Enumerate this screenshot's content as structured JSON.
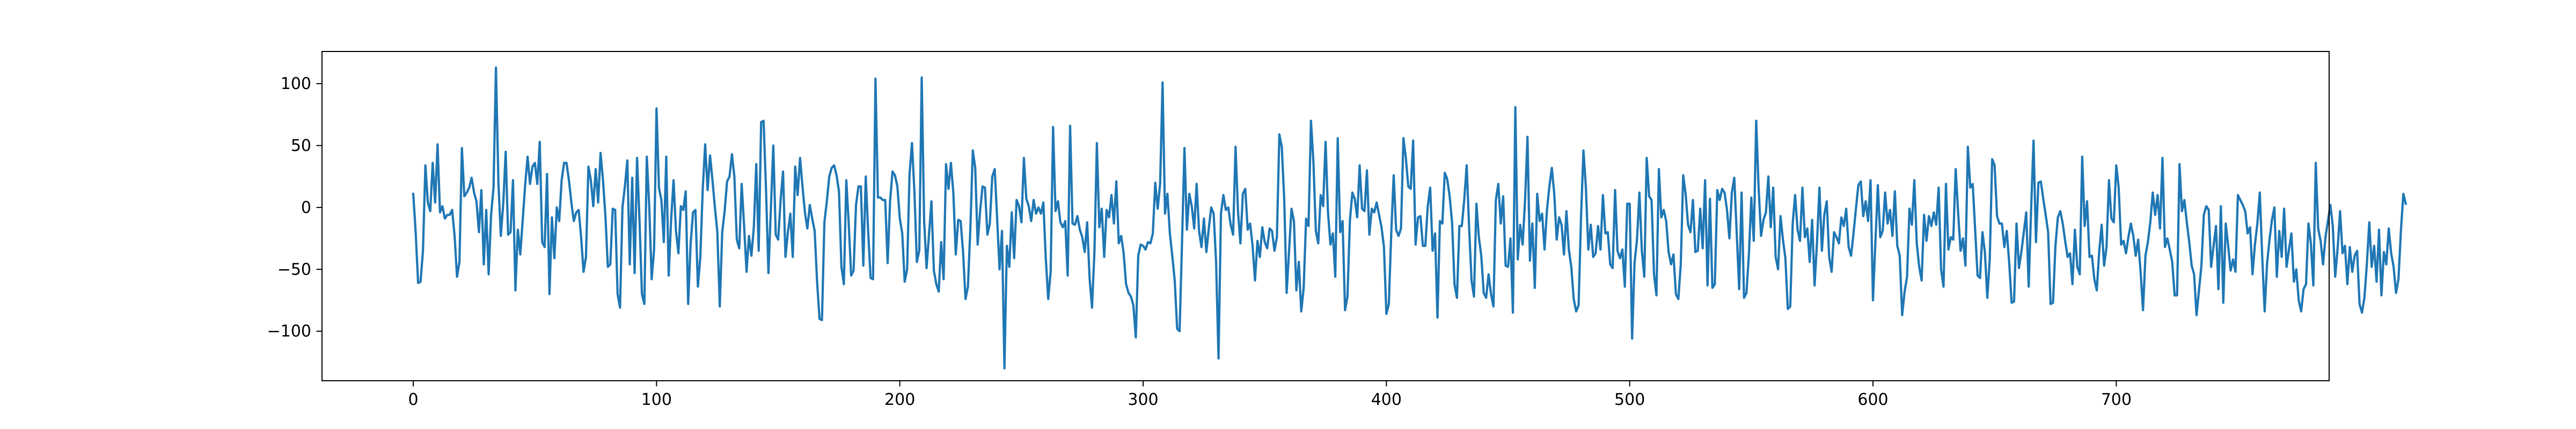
{
  "chart_data": {
    "type": "line",
    "title": "",
    "xlabel": "",
    "ylabel": "",
    "xlim": [
      -37.5,
      787.5
    ],
    "ylim": [
      -140,
      126
    ],
    "xticks": [
      0,
      100,
      200,
      300,
      400,
      500,
      600,
      700
    ],
    "yticks": [
      -100,
      -50,
      0,
      50,
      100
    ],
    "xtick_labels": [
      "0",
      "100",
      "200",
      "300",
      "400",
      "500",
      "600",
      "700"
    ],
    "ytick_labels": [
      "−100",
      "−50",
      "0",
      "50",
      "100"
    ],
    "grid": false,
    "legend": "none",
    "color": "#1f77b4",
    "series": [
      {
        "x_start": 0,
        "x_step": 1,
        "values": [
          11,
          -20,
          -61,
          -60,
          -35,
          34,
          4,
          -3,
          36,
          4,
          51,
          -4,
          1,
          -9,
          -6,
          -6,
          -2,
          -23,
          -56,
          -44,
          48,
          9,
          12,
          16,
          24,
          12,
          5,
          -20,
          14,
          -46,
          -2,
          -54,
          -6,
          16,
          113,
          21,
          -23,
          3,
          45,
          -22,
          -20,
          22,
          -67,
          -18,
          -38,
          -10,
          18,
          41,
          19,
          33,
          36,
          19,
          53,
          -28,
          -32,
          27,
          -70,
          -8,
          -41,
          0,
          -11,
          22,
          36,
          36,
          22,
          4,
          -11,
          -4,
          -2,
          -24,
          -52,
          -40,
          33,
          22,
          1,
          31,
          4,
          44,
          22,
          -7,
          -48,
          -46,
          -1,
          -2,
          -70,
          -81,
          0,
          17,
          38,
          -46,
          24,
          -53,
          40,
          -10,
          -70,
          -78,
          41,
          1,
          -58,
          -34,
          80,
          16,
          6,
          -28,
          41,
          -55,
          -10,
          22,
          -19,
          -37,
          1,
          -2,
          13,
          -78,
          -30,
          -4,
          -2,
          -64,
          -40,
          15,
          51,
          14,
          42,
          22,
          0,
          -20,
          -80,
          -20,
          -3,
          21,
          25,
          43,
          25,
          -26,
          -33,
          19,
          -15,
          -52,
          -23,
          -39,
          -16,
          35,
          -35,
          69,
          70,
          15,
          -53,
          -1,
          50,
          -22,
          -26,
          6,
          29,
          -40,
          -20,
          -5,
          -40,
          33,
          10,
          40,
          17,
          -4,
          -17,
          2,
          -9,
          -19,
          -60,
          -90,
          -91,
          -12,
          5,
          25,
          32,
          34,
          26,
          13,
          -48,
          -62,
          22,
          -13,
          -55,
          -51,
          2,
          17,
          17,
          -47,
          25,
          -20,
          -57,
          -58,
          104,
          8,
          8,
          6,
          6,
          -45,
          5,
          29,
          26,
          17,
          -9,
          -21,
          -60,
          -50,
          27,
          52,
          13,
          -44,
          -35,
          105,
          -11,
          -49,
          -22,
          5,
          -51,
          -62,
          -68,
          -28,
          -58,
          35,
          15,
          36,
          12,
          -38,
          -10,
          -11,
          -36,
          -74,
          -64,
          -17,
          46,
          32,
          -30,
          -3,
          17,
          16,
          -22,
          -13,
          25,
          31,
          -9,
          -50,
          -19,
          -130,
          -31,
          -48,
          -4,
          -41,
          6,
          1,
          -12,
          40,
          7,
          1,
          -11,
          6,
          -5,
          0,
          -5,
          4,
          -41,
          -74,
          -52,
          65,
          -3,
          5,
          -12,
          -16,
          -11,
          -55,
          66,
          -13,
          -14,
          -7,
          -18,
          -24,
          -36,
          -12,
          -57,
          -81,
          -36,
          52,
          -16,
          -1,
          -40,
          -2,
          -8,
          10,
          -13,
          21,
          -29,
          -23,
          -37,
          -62,
          -69,
          -72,
          -79,
          -105,
          -39,
          -30,
          -31,
          -34,
          -28,
          -29,
          -21,
          20,
          -1,
          19,
          101,
          -5,
          11,
          -21,
          -39,
          -59,
          -98,
          -100,
          -28,
          48,
          -18,
          11,
          1,
          -17,
          19,
          -19,
          -32,
          -9,
          -36,
          -17,
          0,
          -5,
          -44,
          -122,
          -5,
          10,
          -2,
          0,
          -14,
          -22,
          49,
          -3,
          -29,
          11,
          15,
          -18,
          -13,
          -31,
          -59,
          -27,
          -40,
          -16,
          -28,
          -33,
          -17,
          -19,
          -35,
          -24,
          59,
          49,
          7,
          -69,
          -35,
          -1,
          -11,
          -67,
          -44,
          -84,
          -65,
          -9,
          -15,
          70,
          37,
          -19,
          -29,
          10,
          1,
          53,
          -4,
          -30,
          -21,
          -56,
          56,
          -20,
          -11,
          -83,
          -72,
          -11,
          12,
          7,
          -8,
          34,
          -1,
          -3,
          30,
          -22,
          -1,
          -4,
          4,
          -6,
          -16,
          -32,
          -86,
          -78,
          -21,
          26,
          -18,
          -23,
          -17,
          56,
          40,
          17,
          15,
          54,
          -30,
          -8,
          -7,
          -31,
          -31,
          1,
          16,
          -35,
          -21,
          -89,
          -11,
          -13,
          28,
          23,
          9,
          -12,
          -62,
          -73,
          -15,
          -15,
          6,
          34,
          -16,
          -59,
          -72,
          3,
          -24,
          -39,
          -69,
          -73,
          -54,
          -70,
          -80,
          6,
          19,
          -13,
          9,
          -47,
          -48,
          -25,
          -85,
          81,
          -42,
          -14,
          -30,
          6,
          57,
          -43,
          -13,
          -65,
          11,
          -11,
          -5,
          -34,
          -2,
          17,
          32,
          11,
          -26,
          -8,
          -14,
          -38,
          -3,
          -34,
          -48,
          -74,
          -84,
          -79,
          -8,
          46,
          16,
          -34,
          -14,
          -40,
          -37,
          -15,
          -34,
          10,
          -21,
          -20,
          -46,
          -49,
          14,
          -35,
          -41,
          -34,
          -64,
          3,
          3,
          -106,
          -45,
          -26,
          12,
          -35,
          -56,
          40,
          9,
          6,
          -54,
          -71,
          31,
          -8,
          -2,
          -11,
          -36,
          -46,
          -38,
          -70,
          -74,
          -46,
          26,
          11,
          -14,
          -20,
          6,
          -36,
          -35,
          -1,
          -33,
          22,
          -63,
          7,
          -65,
          -62,
          14,
          6,
          15,
          12,
          -2,
          -25,
          12,
          24,
          -21,
          -66,
          12,
          -73,
          -69,
          -38,
          8,
          -27,
          70,
          16,
          -23,
          -10,
          -4,
          25,
          -16,
          16,
          -40,
          -50,
          -7,
          -26,
          -41,
          -82,
          -80,
          -13,
          10,
          -18,
          -27,
          16,
          -24,
          -17,
          -44,
          -10,
          -63,
          -28,
          16,
          -35,
          -6,
          5,
          -40,
          -52,
          -20,
          -24,
          -29,
          -8,
          -15,
          -1,
          -32,
          -39,
          -21,
          -1,
          18,
          21,
          -7,
          5,
          -11,
          22,
          -75,
          -28,
          18,
          -24,
          -19,
          12,
          -13,
          -2,
          -23,
          13,
          -31,
          -39,
          -87,
          -68,
          -56,
          -1,
          -14,
          22,
          -29,
          -48,
          -59,
          -6,
          -27,
          -7,
          -15,
          -4,
          -14,
          16,
          -50,
          -64,
          19,
          -34,
          -24,
          -26,
          31,
          -4,
          -35,
          -25,
          -47,
          49,
          16,
          19,
          -18,
          -55,
          -57,
          -20,
          -36,
          -73,
          -42,
          39,
          34,
          -7,
          -13,
          -13,
          -32,
          -19,
          -45,
          -77,
          -76,
          -13,
          -49,
          -36,
          -20,
          -4,
          -64,
          -2,
          54,
          -28,
          20,
          21,
          7,
          -6,
          -20,
          -78,
          -77,
          -31,
          -8,
          -3,
          -13,
          -27,
          -40,
          -37,
          -62,
          -18,
          -48,
          -54,
          41,
          -15,
          5,
          -40,
          -39,
          -58,
          -67,
          -35,
          -14,
          -47,
          -32,
          22,
          -9,
          -12,
          34,
          16,
          -30,
          -27,
          -37,
          -24,
          -13,
          -23,
          -39,
          -26,
          -52,
          -83,
          -39,
          -28,
          -12,
          12,
          -6,
          10,
          -17,
          40,
          -32,
          -25,
          -34,
          -44,
          -71,
          -71,
          35,
          -3,
          6,
          -12,
          -28,
          -47,
          -54,
          -87,
          -67,
          -47,
          -6,
          1,
          -2,
          -48,
          -31,
          -15,
          -66,
          1,
          -77,
          -13,
          -31,
          -51,
          -42,
          -52,
          10,
          6,
          2,
          -3,
          -21,
          -16,
          -54,
          -30,
          -13,
          12,
          -40,
          -84,
          -45,
          -26,
          -10,
          0,
          -56,
          -19,
          -40,
          -1,
          -48,
          -34,
          -21,
          -60,
          -50,
          -75,
          -84,
          -66,
          -62,
          -13,
          -29,
          -63,
          36,
          -17,
          -27,
          -46,
          -24,
          -11,
          2,
          -15,
          -56,
          -33,
          -3,
          -37,
          -31,
          -62,
          -32,
          -52,
          -39,
          -35,
          -78,
          -85,
          -73,
          -46,
          -12,
          -48,
          -31,
          -60,
          -18,
          -71,
          -36,
          -46,
          -17,
          -37,
          -48,
          -69,
          -58,
          -19,
          11,
          3
        ]
      }
    ]
  }
}
